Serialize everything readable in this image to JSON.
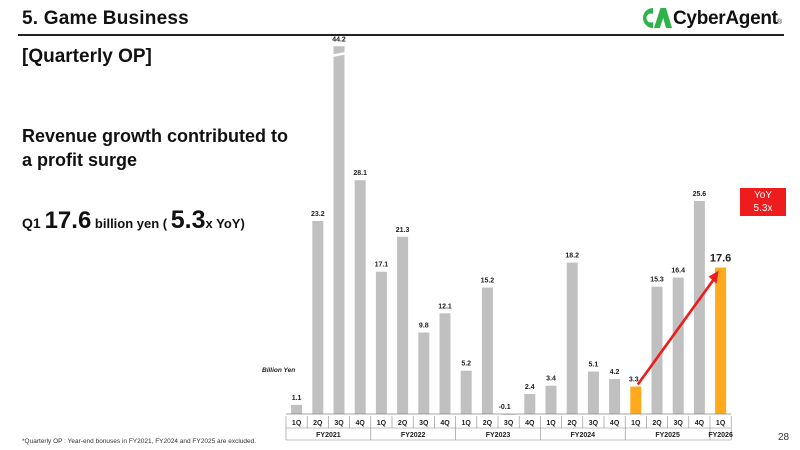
{
  "header": {
    "section_title": "5.  Game Business",
    "logo_text": "CyberAgent",
    "logo_reg": "®",
    "logo_color": "#2db34a"
  },
  "subtitle": "[Quarterly OP]",
  "headline": "Revenue growth contributed to a profit surge",
  "q1_summary": {
    "prefix": "Q1 ",
    "value": "17.6",
    "unit": " billion yen ( ",
    "ratio": "5.3",
    "suffix": "x YoY)"
  },
  "yoy_callout": {
    "line1": "YoY",
    "line2": "5.3x",
    "color": "#ee1c1c"
  },
  "footnote": "*Quarterly OP : Year-end bonuses in FY2021, FY2024 and FY2025 are excluded.",
  "page_number": "28",
  "chart_data": {
    "type": "bar",
    "ylabel": "Billion Yen",
    "ylim": [
      -1,
      46
    ],
    "grid": false,
    "legend": "none",
    "colors": {
      "default": "#c0c0c0",
      "highlight": "#ffaa1d",
      "arrow": "#ee1c1c"
    },
    "categories": [
      "1Q",
      "2Q",
      "3Q",
      "4Q",
      "1Q",
      "2Q",
      "3Q",
      "4Q",
      "1Q",
      "2Q",
      "3Q",
      "4Q",
      "1Q",
      "2Q",
      "3Q",
      "4Q",
      "1Q",
      "2Q",
      "3Q",
      "4Q",
      "1Q"
    ],
    "values": [
      1.1,
      23.2,
      44.2,
      28.1,
      17.1,
      21.3,
      9.8,
      12.1,
      5.2,
      15.2,
      -0.1,
      2.4,
      3.4,
      18.2,
      5.1,
      4.2,
      3.3,
      15.3,
      16.4,
      25.6,
      17.6
    ],
    "value_labels": [
      "1.1",
      "23.2",
      "44.2",
      "28.1",
      "17.1",
      "21.3",
      "9.8",
      "12.1",
      "5.2",
      "15.2",
      "-0.1",
      "2.4",
      "3.4",
      "18.2",
      "5.1",
      "4.2",
      "3.3",
      "15.3",
      "16.4",
      "25.6",
      "17.6"
    ],
    "highlight_indices": [
      16,
      20
    ],
    "fiscal_years": [
      {
        "label": "FY2021",
        "start": 0,
        "count": 4
      },
      {
        "label": "FY2022",
        "start": 4,
        "count": 4
      },
      {
        "label": "FY2023",
        "start": 8,
        "count": 4
      },
      {
        "label": "FY2024",
        "start": 12,
        "count": 4
      },
      {
        "label": "FY2025",
        "start": 16,
        "count": 4
      },
      {
        "label": "FY2026",
        "start": 20,
        "count": 1
      }
    ],
    "arrow": {
      "from_index": 16,
      "to_index": 20
    }
  }
}
